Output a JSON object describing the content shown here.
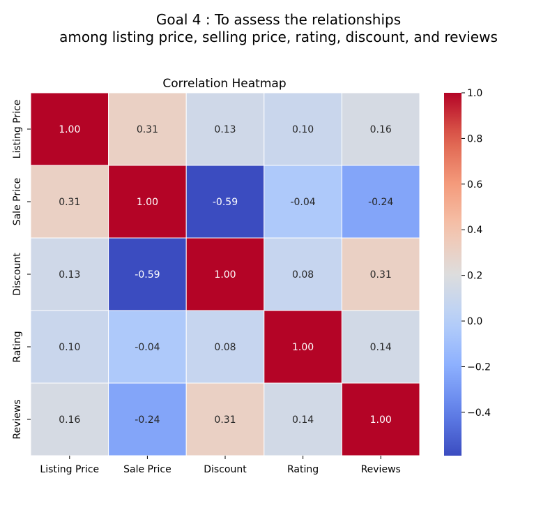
{
  "figure": {
    "suptitle_line1": "Goal 4 : To assess the relationships",
    "suptitle_line2": "among listing price, selling price, rating, discount, and reviews"
  },
  "chart_data": {
    "type": "heatmap",
    "title": "Correlation Heatmap",
    "colormap": "coolwarm",
    "vmin": -0.59,
    "vmax": 1.0,
    "annot_format": "2 decimals",
    "rows": [
      "Listing Price",
      "Sale Price",
      "Discount",
      "Rating",
      "Reviews"
    ],
    "columns": [
      "Listing Price",
      "Sale Price",
      "Discount",
      "Rating",
      "Reviews"
    ],
    "values": [
      [
        1.0,
        0.31,
        0.13,
        0.1,
        0.16
      ],
      [
        0.31,
        1.0,
        -0.59,
        -0.04,
        -0.24
      ],
      [
        0.13,
        -0.59,
        1.0,
        0.08,
        0.31
      ],
      [
        0.1,
        -0.04,
        0.08,
        1.0,
        0.14
      ],
      [
        0.16,
        -0.24,
        0.31,
        0.14,
        1.0
      ]
    ],
    "colorbar_ticks": [
      1.0,
      0.8,
      0.6,
      0.4,
      0.2,
      0.0,
      -0.2,
      -0.4
    ],
    "colorbar_tick_labels": [
      "1.0",
      "0.8",
      "0.6",
      "0.4",
      "0.2",
      "0.0",
      "−0.2",
      "−0.4"
    ]
  }
}
